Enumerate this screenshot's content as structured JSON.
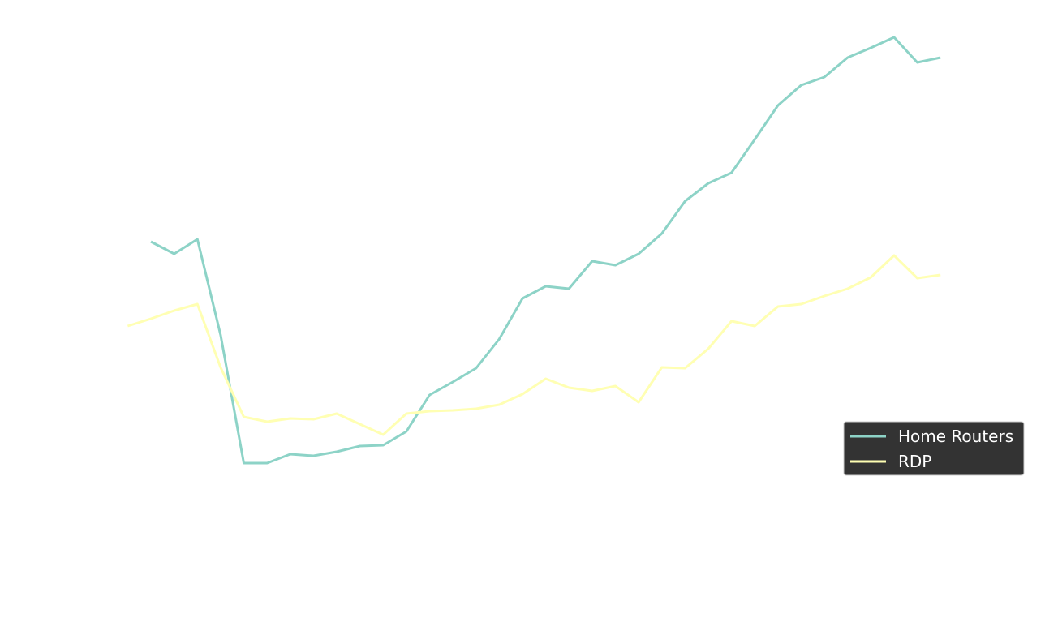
{
  "chart_data": {
    "type": "line",
    "title": "",
    "xlabel": "",
    "ylabel": "",
    "grid": false,
    "legend_placement": "center-right",
    "legend_background": "#333333",
    "x": [
      0,
      1,
      2,
      3,
      4,
      5,
      6,
      7,
      8,
      9,
      10,
      11,
      12,
      13,
      14,
      15,
      16,
      17,
      18,
      19,
      20,
      21,
      22,
      23,
      24,
      25,
      26,
      27,
      28,
      29,
      30,
      31,
      32,
      33,
      34,
      35,
      36
    ],
    "xlim": [
      -5.5,
      39.5
    ],
    "ylim": [
      0,
      783
    ],
    "series": [
      {
        "name": "Home Routers",
        "color": "#8dd3c7",
        "values": [
          null,
          485,
          470,
          488,
          370,
          212,
          212,
          223,
          221,
          226,
          233,
          234,
          251,
          296,
          312,
          329,
          365,
          415,
          430,
          427,
          461,
          456,
          470,
          495,
          535,
          557,
          570,
          611,
          653,
          678,
          688,
          712,
          724,
          737,
          706,
          712,
          null
        ]
      },
      {
        "name": "RDP",
        "color": "#ffffb3",
        "values": [
          381,
          390,
          400,
          408,
          330,
          269,
          263,
          267,
          266,
          273,
          260,
          247,
          273,
          276,
          277,
          279,
          284,
          297,
          316,
          305,
          301,
          307,
          287,
          330,
          329,
          353,
          387,
          381,
          405,
          408,
          418,
          427,
          441,
          468,
          440,
          444,
          null
        ]
      }
    ]
  }
}
